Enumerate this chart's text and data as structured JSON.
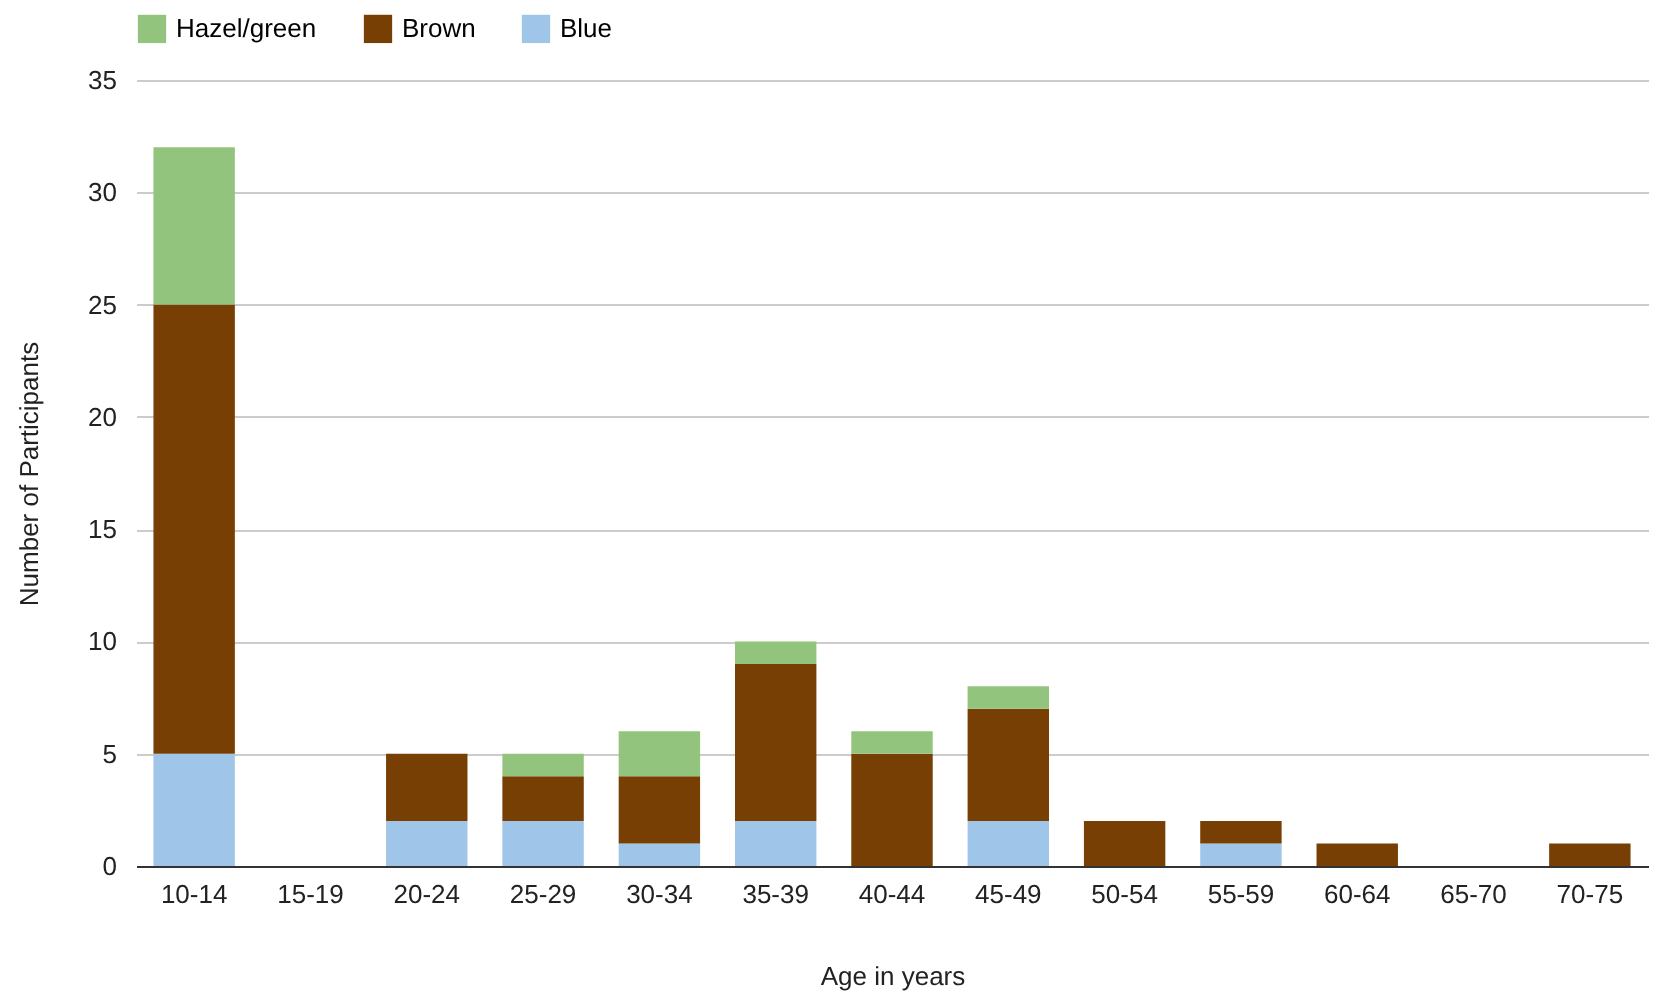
{
  "chart_data": {
    "type": "bar",
    "stacked": true,
    "xlabel": "Age in years",
    "ylabel": "Number of Participants",
    "categories": [
      "10-14",
      "15-19",
      "20-24",
      "25-29",
      "30-34",
      "35-39",
      "40-44",
      "45-49",
      "50-54",
      "55-59",
      "60-64",
      "65-70",
      "70-75"
    ],
    "series": [
      {
        "name": "Blue",
        "color": "#9fc5e8",
        "values": [
          5,
          0,
          2,
          2,
          1,
          2,
          0,
          2,
          0,
          1,
          0,
          0,
          0
        ]
      },
      {
        "name": "Brown",
        "color": "#783f04",
        "values": [
          20,
          0,
          3,
          2,
          3,
          7,
          5,
          5,
          2,
          1,
          1,
          0,
          1
        ]
      },
      {
        "name": "Hazel/green",
        "color": "#93c47d",
        "values": [
          7,
          0,
          0,
          1,
          2,
          1,
          1,
          1,
          0,
          0,
          0,
          0,
          0
        ]
      }
    ],
    "ylim": [
      0,
      35
    ],
    "yticks": [
      0,
      5,
      10,
      15,
      20,
      25,
      30,
      35
    ],
    "grid": "y",
    "legend": "top"
  }
}
